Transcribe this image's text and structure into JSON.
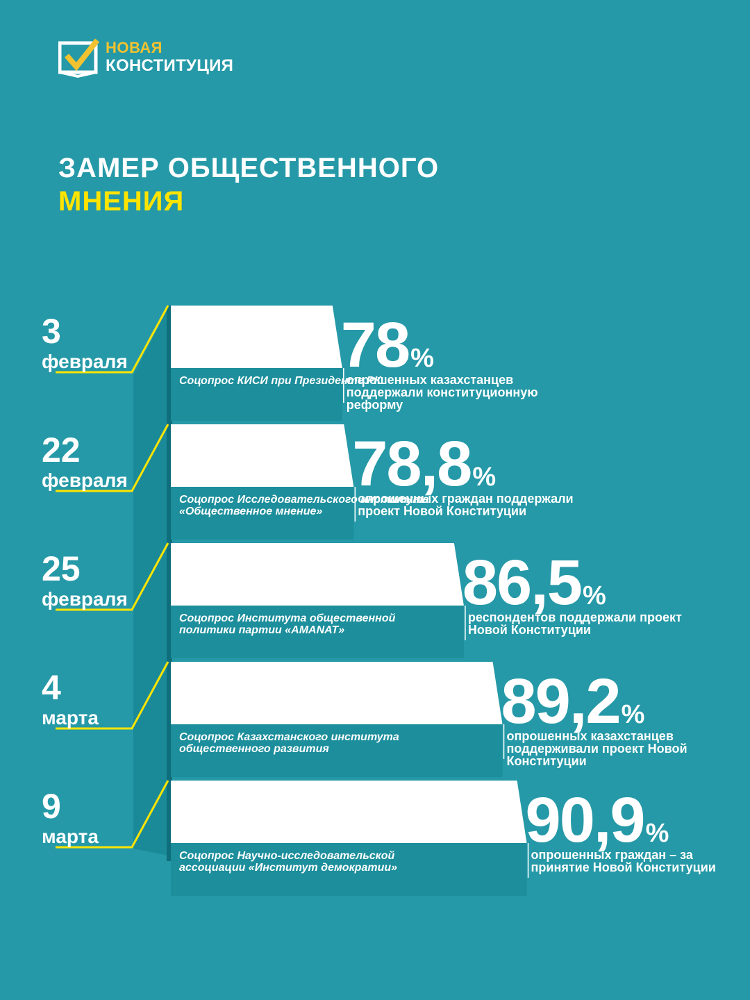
{
  "logo": {
    "line1": "НОВАЯ",
    "line2": "КОНСТИТУЦИЯ"
  },
  "title": {
    "line1": "ЗАМЕР ОБЩЕСТВЕННОГО",
    "line2": "МНЕНИЯ"
  },
  "colors": {
    "background": "#2599a7",
    "accent_yellow": "#ffe400",
    "logo_gold": "#f2c230",
    "bar": "#ffffff",
    "pillar": "#137c8c",
    "pillar_side": "#1a8a99"
  },
  "chart_data": {
    "type": "bar",
    "orientation": "horizontal",
    "unit": "%",
    "categories": [
      "3 февраля",
      "22 февраля",
      "25 февраля",
      "4 марта",
      "9 марта"
    ],
    "values": [
      78,
      78.8,
      86.5,
      89.2,
      90.9
    ],
    "items": [
      {
        "day": "3",
        "month": "февраля",
        "source": "Соцопрос КИСИ при Президенте РК",
        "value": 78,
        "value_text": "78",
        "unit": "%",
        "description": "опрошенных казахстанцев поддержали конституционную реформу"
      },
      {
        "day": "22",
        "month": "февраля",
        "source": "Соцопрос Исследовательского института «Общественное мнение»",
        "value": 78.8,
        "value_text": "78,8",
        "unit": "%",
        "description": "опрошенных граждан поддержали проект Новой Конституции"
      },
      {
        "day": "25",
        "month": "февраля",
        "source": "Соцопрос Института общественной политики партии «AMANAT»",
        "value": 86.5,
        "value_text": "86,5",
        "unit": "%",
        "description": "респондентов поддержали проект Новой Конституции"
      },
      {
        "day": "4",
        "month": "марта",
        "source": "Соцопрос Казахстанского института общественного развития",
        "value": 89.2,
        "value_text": "89,2",
        "unit": "%",
        "description": "опрошенных казахстанцев поддерживали проект Новой Конституции"
      },
      {
        "day": "9",
        "month": "марта",
        "source": "Соцопрос Научно-исследовательской ассоциации «Институт демократии»",
        "value": 90.9,
        "value_text": "90,9",
        "unit": "%",
        "description": "опрошенных граждан – за принятие Новой Конституции"
      }
    ]
  }
}
